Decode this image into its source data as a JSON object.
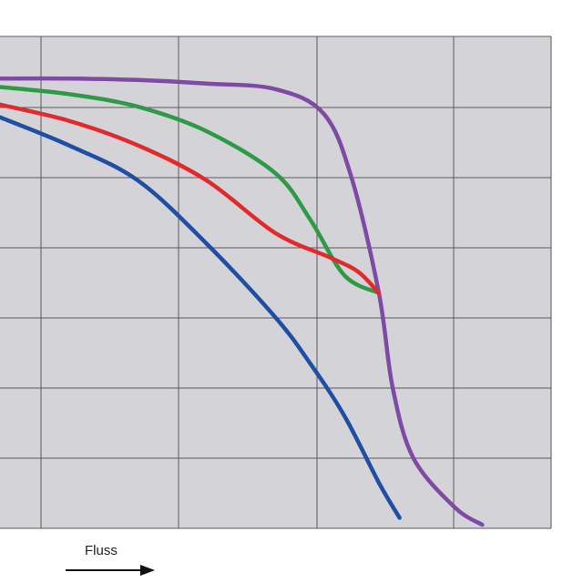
{
  "chart_data": {
    "type": "line",
    "xlabel": "Fluss",
    "xlabel_arrow": "right-arrow-icon",
    "grid": true,
    "legend": "none",
    "background": "#d4d4d8",
    "grid_color": "#5a5a5a",
    "xlim": [
      0,
      8
    ],
    "ylim": [
      0,
      7
    ],
    "series": [
      {
        "color": "#7e4aa3",
        "points": [
          [
            0,
            6.4
          ],
          [
            1,
            6.4
          ],
          [
            2,
            6.38
          ],
          [
            3,
            6.33
          ],
          [
            4,
            6.25
          ],
          [
            4.7,
            5.9
          ],
          [
            5.1,
            5.0
          ],
          [
            5.5,
            3.35
          ],
          [
            5.7,
            2.0
          ],
          [
            6.0,
            1.0
          ],
          [
            6.6,
            0.3
          ],
          [
            7.0,
            0.05
          ]
        ]
      },
      {
        "color": "#2e9a45",
        "points": [
          [
            0,
            6.28
          ],
          [
            1,
            6.18
          ],
          [
            2,
            6.0
          ],
          [
            3,
            5.65
          ],
          [
            4,
            5.05
          ],
          [
            4.5,
            4.4
          ],
          [
            5.0,
            3.6
          ],
          [
            5.5,
            3.35
          ]
        ]
      },
      {
        "color": "#e22a2c",
        "points": [
          [
            0,
            6.03
          ],
          [
            1,
            5.8
          ],
          [
            2,
            5.45
          ],
          [
            3,
            4.95
          ],
          [
            4,
            4.2
          ],
          [
            4.8,
            3.85
          ],
          [
            5.2,
            3.65
          ],
          [
            5.5,
            3.35
          ]
        ]
      },
      {
        "color": "#1f4ea3",
        "points": [
          [
            0,
            5.85
          ],
          [
            1,
            5.45
          ],
          [
            2,
            4.95
          ],
          [
            3,
            4.05
          ],
          [
            4,
            3.0
          ],
          [
            4.5,
            2.35
          ],
          [
            5.0,
            1.6
          ],
          [
            5.5,
            0.65
          ],
          [
            5.8,
            0.15
          ]
        ]
      }
    ]
  }
}
